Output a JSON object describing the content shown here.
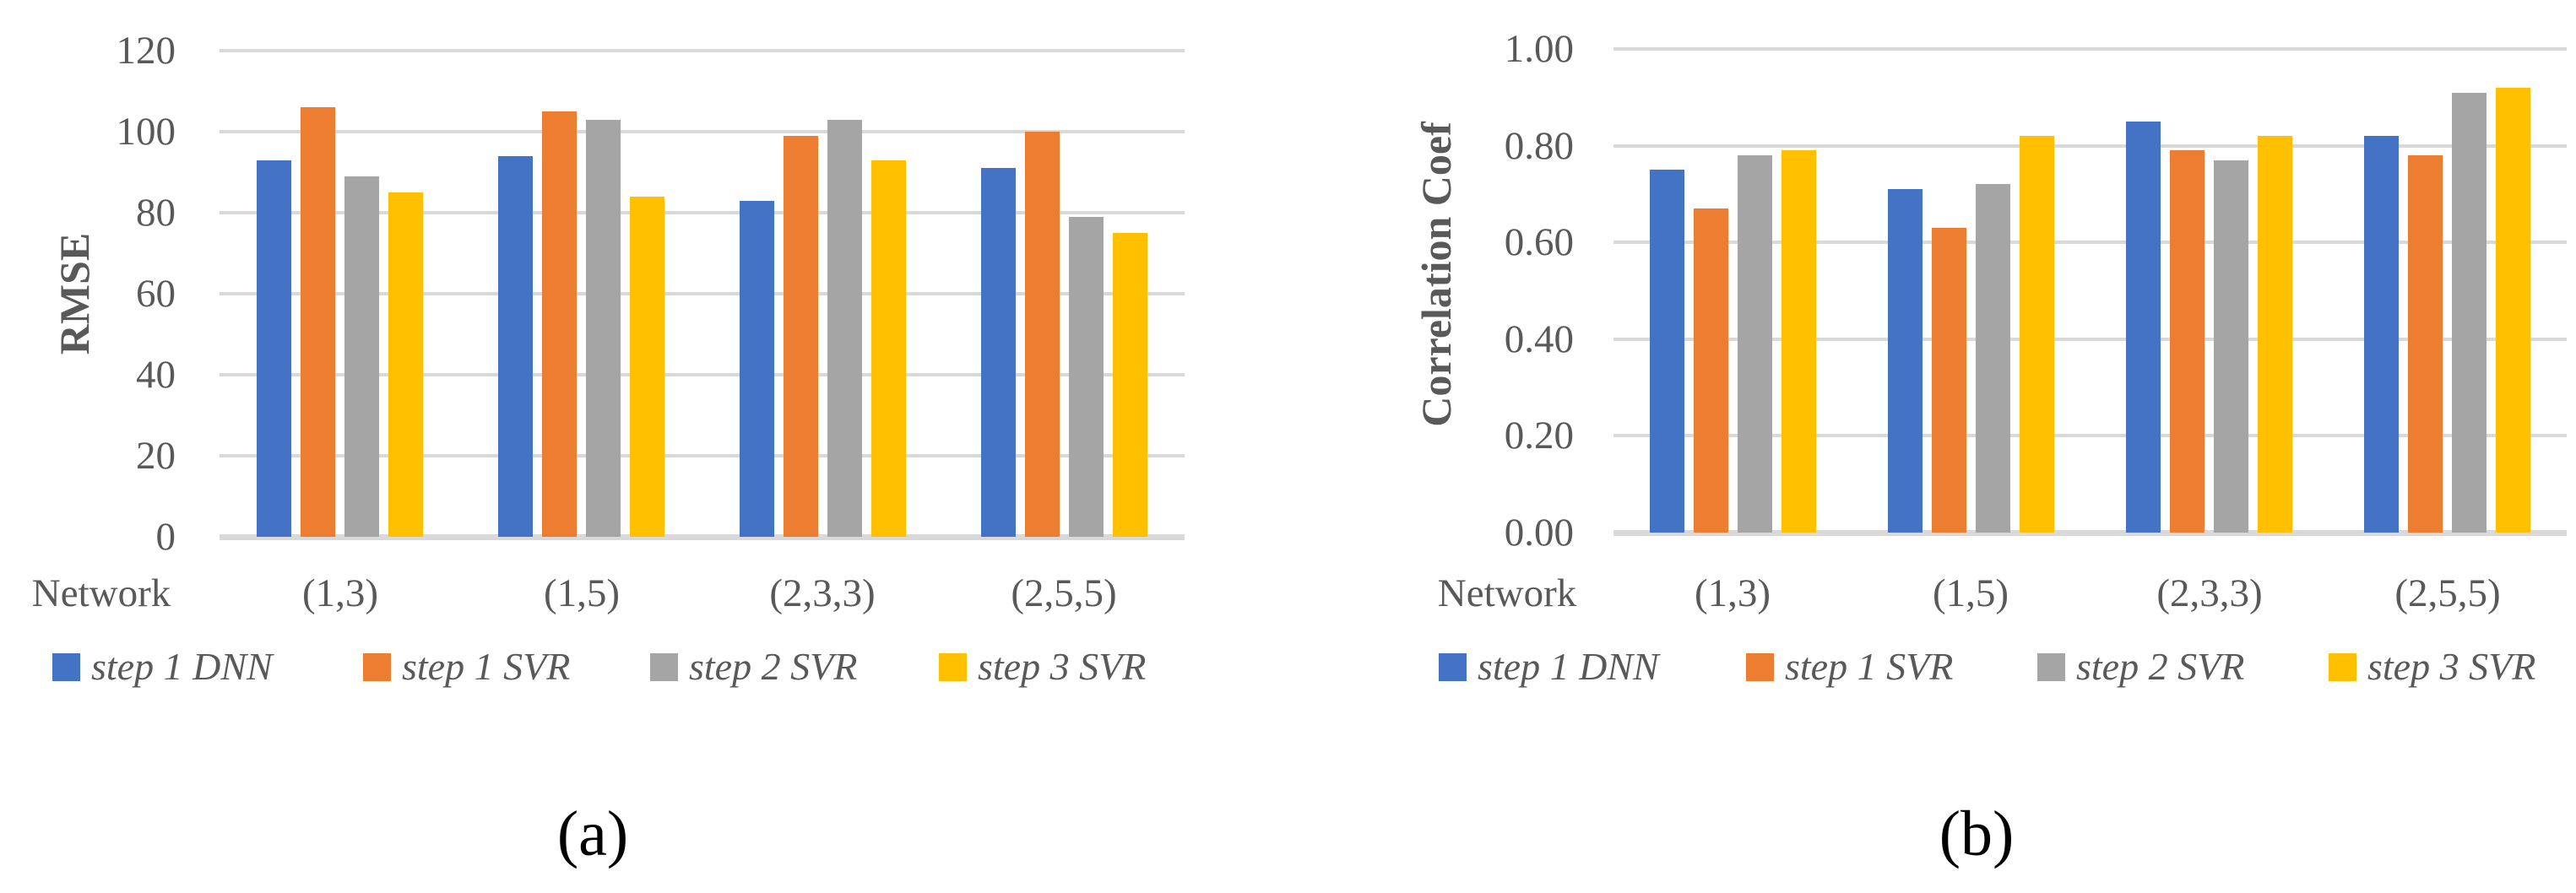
{
  "figure": {
    "caption_a": "(a)",
    "caption_b": "(b)"
  },
  "colors": {
    "series": [
      "#4472C4",
      "#ED7D31",
      "#A5A5A5",
      "#FFC000"
    ],
    "gridline": "#D9D9D9",
    "axis_text": "#595959",
    "caption_text": "#000000"
  },
  "chart_data": [
    {
      "id": "rmse",
      "type": "bar",
      "title": "",
      "xlabel": "Network",
      "ylabel": "RMSE",
      "categories": [
        "(1,3)",
        "(1,5)",
        "(2,3,3)",
        "(2,5,5)"
      ],
      "series": [
        {
          "name": "step 1 DNN",
          "values": [
            93,
            94,
            83,
            91
          ]
        },
        {
          "name": "step 1 SVR",
          "values": [
            106,
            105,
            99,
            100
          ]
        },
        {
          "name": "step 2 SVR",
          "values": [
            89,
            103,
            103,
            79
          ]
        },
        {
          "name": "step 3 SVR",
          "values": [
            85,
            84,
            93,
            75
          ]
        }
      ],
      "ylim": [
        0,
        120
      ],
      "ytick_step": 20,
      "ytick_labels": [
        "0",
        "20",
        "40",
        "60",
        "80",
        "100",
        "120"
      ],
      "grid": true,
      "legend_position": "bottom"
    },
    {
      "id": "correlation",
      "type": "bar",
      "title": "",
      "xlabel": "Network",
      "ylabel": "Correlation Coef",
      "categories": [
        "(1,3)",
        "(1,5)",
        "(2,3,3)",
        "(2,5,5)"
      ],
      "series": [
        {
          "name": "step 1 DNN",
          "values": [
            0.75,
            0.71,
            0.85,
            0.82
          ]
        },
        {
          "name": "step 1 SVR",
          "values": [
            0.67,
            0.63,
            0.79,
            0.78
          ]
        },
        {
          "name": "step 2 SVR",
          "values": [
            0.78,
            0.72,
            0.77,
            0.91
          ]
        },
        {
          "name": "step 3 SVR",
          "values": [
            0.79,
            0.82,
            0.82,
            0.92
          ]
        }
      ],
      "ylim": [
        0,
        1.0
      ],
      "ytick_step": 0.2,
      "ytick_labels": [
        "0.00",
        "0.20",
        "0.40",
        "0.60",
        "0.80",
        "1.00"
      ],
      "grid": true,
      "legend_position": "bottom"
    }
  ]
}
